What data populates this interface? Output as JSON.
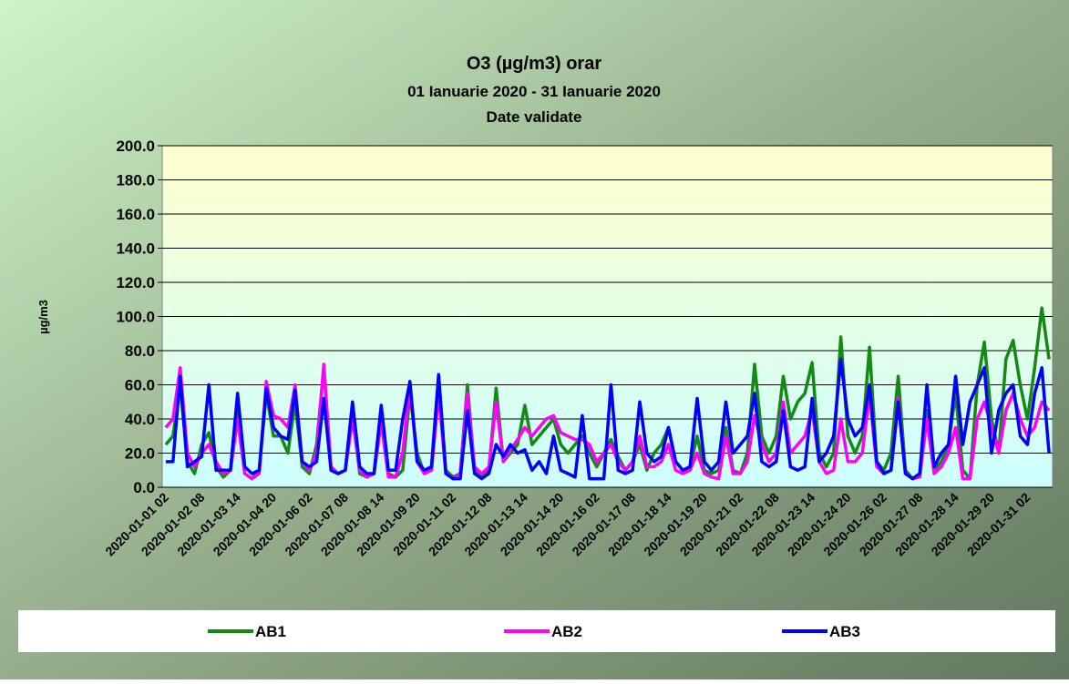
{
  "chart_data": {
    "type": "line",
    "title": "O3 (µg/m3) orar",
    "subtitle": [
      "01 Ianuarie 2020 - 31 Ianuarie 2020",
      "Date validate"
    ],
    "y_label": "µg/m3",
    "categories": [
      "2020-01-01 02",
      null,
      null,
      null,
      null,
      "2020-01-02 08",
      null,
      null,
      null,
      null,
      "2020-01-03 14",
      null,
      null,
      null,
      null,
      "2020-01-04 20",
      null,
      null,
      null,
      null,
      "2020-01-06 02",
      null,
      null,
      null,
      null,
      "2020-01-07 08",
      null,
      null,
      null,
      null,
      "2020-01-08 14",
      null,
      null,
      null,
      null,
      "2020-01-09 20",
      null,
      null,
      null,
      null,
      "2020-01-11 02",
      null,
      null,
      null,
      null,
      "2020-01-12 08",
      null,
      null,
      null,
      null,
      "2020-01-13 14",
      null,
      null,
      null,
      null,
      "2020-01-14 20",
      null,
      null,
      null,
      null,
      "2020-01-16 02",
      null,
      null,
      null,
      null,
      "2020-01-17 08",
      null,
      null,
      null,
      null,
      "2020-01-18 14",
      null,
      null,
      null,
      null,
      "2020-01-19 20",
      null,
      null,
      null,
      null,
      "2020-01-21 02",
      null,
      null,
      null,
      null,
      "2020-01-22 08",
      null,
      null,
      null,
      null,
      "2020-01-23 14",
      null,
      null,
      null,
      null,
      "2020-01-24 20",
      null,
      null,
      null,
      null,
      "2020-01-26 02",
      null,
      null,
      null,
      null,
      "2020-01-27 08",
      null,
      null,
      null,
      null,
      "2020-01-28 14",
      null,
      null,
      null,
      null,
      "2020-01-29 20",
      null,
      null,
      null,
      null,
      "2020-01-31 02",
      null,
      null,
      null
    ],
    "series": [
      {
        "name": "AB1",
        "color": "#138a13",
        "values": [
          25,
          30,
          60,
          15,
          8,
          25,
          32,
          12,
          6,
          10,
          50,
          8,
          5,
          10,
          55,
          30,
          30,
          20,
          50,
          12,
          8,
          25,
          70,
          10,
          8,
          10,
          45,
          8,
          6,
          8,
          45,
          8,
          6,
          10,
          55,
          20,
          8,
          12,
          65,
          10,
          6,
          8,
          60,
          10,
          6,
          10,
          58,
          15,
          20,
          25,
          48,
          25,
          30,
          35,
          40,
          25,
          20,
          25,
          30,
          20,
          12,
          20,
          28,
          18,
          10,
          15,
          25,
          10,
          20,
          25,
          35,
          15,
          10,
          12,
          30,
          10,
          8,
          10,
          35,
          10,
          8,
          20,
          72,
          30,
          20,
          30,
          65,
          40,
          50,
          55,
          73,
          20,
          12,
          20,
          88,
          30,
          20,
          30,
          82,
          15,
          10,
          20,
          65,
          10,
          5,
          8,
          45,
          10,
          15,
          25,
          55,
          10,
          5,
          60,
          85,
          40,
          20,
          75,
          86,
          60,
          40,
          70,
          105,
          75
        ]
      },
      {
        "name": "AB2",
        "color": "#ff00ff",
        "values": [
          35,
          40,
          70,
          20,
          12,
          20,
          25,
          15,
          8,
          10,
          40,
          8,
          5,
          8,
          62,
          42,
          40,
          35,
          60,
          15,
          10,
          20,
          72,
          12,
          8,
          10,
          40,
          10,
          6,
          8,
          38,
          6,
          6,
          20,
          60,
          15,
          8,
          10,
          55,
          8,
          5,
          8,
          55,
          12,
          8,
          12,
          50,
          15,
          22,
          28,
          35,
          30,
          35,
          40,
          42,
          32,
          30,
          28,
          28,
          25,
          15,
          20,
          25,
          15,
          10,
          15,
          30,
          12,
          12,
          15,
          25,
          10,
          8,
          10,
          20,
          8,
          6,
          5,
          30,
          8,
          8,
          15,
          42,
          25,
          15,
          20,
          50,
          20,
          25,
          30,
          45,
          15,
          8,
          10,
          40,
          15,
          15,
          20,
          55,
          12,
          8,
          10,
          52,
          8,
          5,
          6,
          40,
          8,
          12,
          20,
          35,
          5,
          5,
          40,
          50,
          35,
          20,
          45,
          55,
          40,
          30,
          35,
          50,
          45
        ]
      },
      {
        "name": "AB3",
        "color": "#0000ff",
        "values": [
          15,
          15,
          65,
          12,
          15,
          18,
          60,
          10,
          10,
          10,
          55,
          12,
          8,
          10,
          58,
          35,
          30,
          28,
          57,
          15,
          12,
          15,
          52,
          10,
          8,
          10,
          50,
          12,
          8,
          8,
          48,
          10,
          10,
          40,
          62,
          15,
          10,
          12,
          66,
          8,
          5,
          5,
          45,
          8,
          5,
          8,
          25,
          18,
          25,
          20,
          22,
          10,
          15,
          8,
          30,
          10,
          8,
          6,
          42,
          5,
          5,
          5,
          60,
          10,
          8,
          10,
          50,
          20,
          15,
          18,
          35,
          15,
          10,
          12,
          52,
          15,
          10,
          15,
          50,
          20,
          25,
          30,
          55,
          15,
          12,
          15,
          45,
          12,
          10,
          12,
          52,
          15,
          20,
          30,
          75,
          40,
          30,
          35,
          60,
          15,
          8,
          10,
          50,
          8,
          5,
          8,
          60,
          12,
          20,
          25,
          65,
          25,
          50,
          60,
          70,
          20,
          45,
          55,
          60,
          30,
          25,
          55,
          70,
          20
        ]
      }
    ],
    "ylim": [
      0,
      200
    ],
    "yticks": [
      {
        "value": 0,
        "label": "0.0"
      },
      {
        "value": 20,
        "label": "20.0"
      },
      {
        "value": 40,
        "label": "40.0"
      },
      {
        "value": 60,
        "label": "60.0"
      },
      {
        "value": 80,
        "label": "80.0"
      },
      {
        "value": 100,
        "label": "100.0"
      },
      {
        "value": 120,
        "label": "120.0"
      },
      {
        "value": 140,
        "label": "140.0"
      },
      {
        "value": 160,
        "label": "160.0"
      },
      {
        "value": 180,
        "label": "180.0"
      },
      {
        "value": 200,
        "label": "200.0"
      }
    ],
    "grid": true,
    "legend": "bottom"
  }
}
